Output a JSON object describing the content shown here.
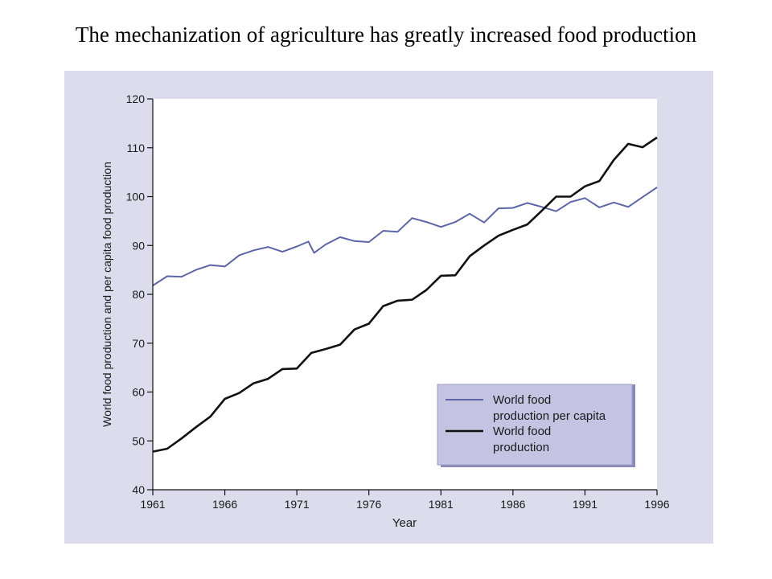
{
  "slide": {
    "title": "The mechanization of agriculture has greatly increased food production"
  },
  "colors": {
    "panel_background": "#dcdcec",
    "plot_background": "#ffffff",
    "per_capita_series": "#5b65a8",
    "total_series": "#111111",
    "legend_fill": "#c4c3e2",
    "legend_border": "#8a8ab8"
  },
  "chart_data": {
    "type": "line",
    "title": "",
    "xlabel": "Year",
    "ylabel": "World food production and per capita food production",
    "xlim": [
      1961,
      1996
    ],
    "ylim": [
      40,
      120
    ],
    "xticks": [
      1961,
      1966,
      1971,
      1976,
      1981,
      1986,
      1991,
      1996
    ],
    "yticks": [
      40,
      50,
      60,
      70,
      80,
      90,
      100,
      110,
      120
    ],
    "grid": false,
    "legend_position": "bottom-right",
    "series": [
      {
        "name": "World food production per capita",
        "color": "#5b65a8",
        "x": [
          1961,
          1962,
          1963,
          1964,
          1965,
          1966,
          1967,
          1968,
          1969,
          1970,
          1971,
          1971.8,
          1972.2,
          1973,
          1974,
          1975,
          1976,
          1977,
          1978,
          1979,
          1980,
          1981,
          1982,
          1983,
          1984,
          1985,
          1986,
          1987,
          1988,
          1989,
          1990,
          1991,
          1992,
          1993,
          1994,
          1995,
          1996
        ],
        "y": [
          81.8,
          83.7,
          83.6,
          85.0,
          86.0,
          85.7,
          88.0,
          89.0,
          89.7,
          88.7,
          89.8,
          90.8,
          88.5,
          90.2,
          91.7,
          90.9,
          90.7,
          93.0,
          92.8,
          95.6,
          94.8,
          93.8,
          94.8,
          96.5,
          94.7,
          97.6,
          97.7,
          98.7,
          97.9,
          97.0,
          98.9,
          99.7,
          97.8,
          98.8,
          97.9,
          99.9,
          101.9
        ]
      },
      {
        "name": "World food production",
        "color": "#111111",
        "x": [
          1961,
          1962,
          1963,
          1964,
          1965,
          1966,
          1967,
          1968,
          1969,
          1970,
          1971,
          1972,
          1973,
          1974,
          1975,
          1976,
          1977,
          1978,
          1979,
          1980,
          1981,
          1982,
          1983,
          1984,
          1985,
          1986,
          1987,
          1988,
          1989,
          1990,
          1991,
          1992,
          1993,
          1994,
          1995,
          1996
        ],
        "y": [
          47.8,
          48.4,
          50.5,
          52.8,
          55.0,
          58.6,
          59.8,
          61.8,
          62.7,
          64.7,
          64.8,
          68.0,
          68.8,
          69.7,
          72.8,
          74.0,
          77.6,
          78.7,
          78.9,
          80.9,
          83.8,
          83.9,
          87.8,
          90.0,
          92.0,
          93.2,
          94.3,
          97.1,
          100.0,
          100.0,
          102.1,
          103.2,
          107.5,
          110.8,
          110.1,
          112.1
        ]
      }
    ]
  }
}
